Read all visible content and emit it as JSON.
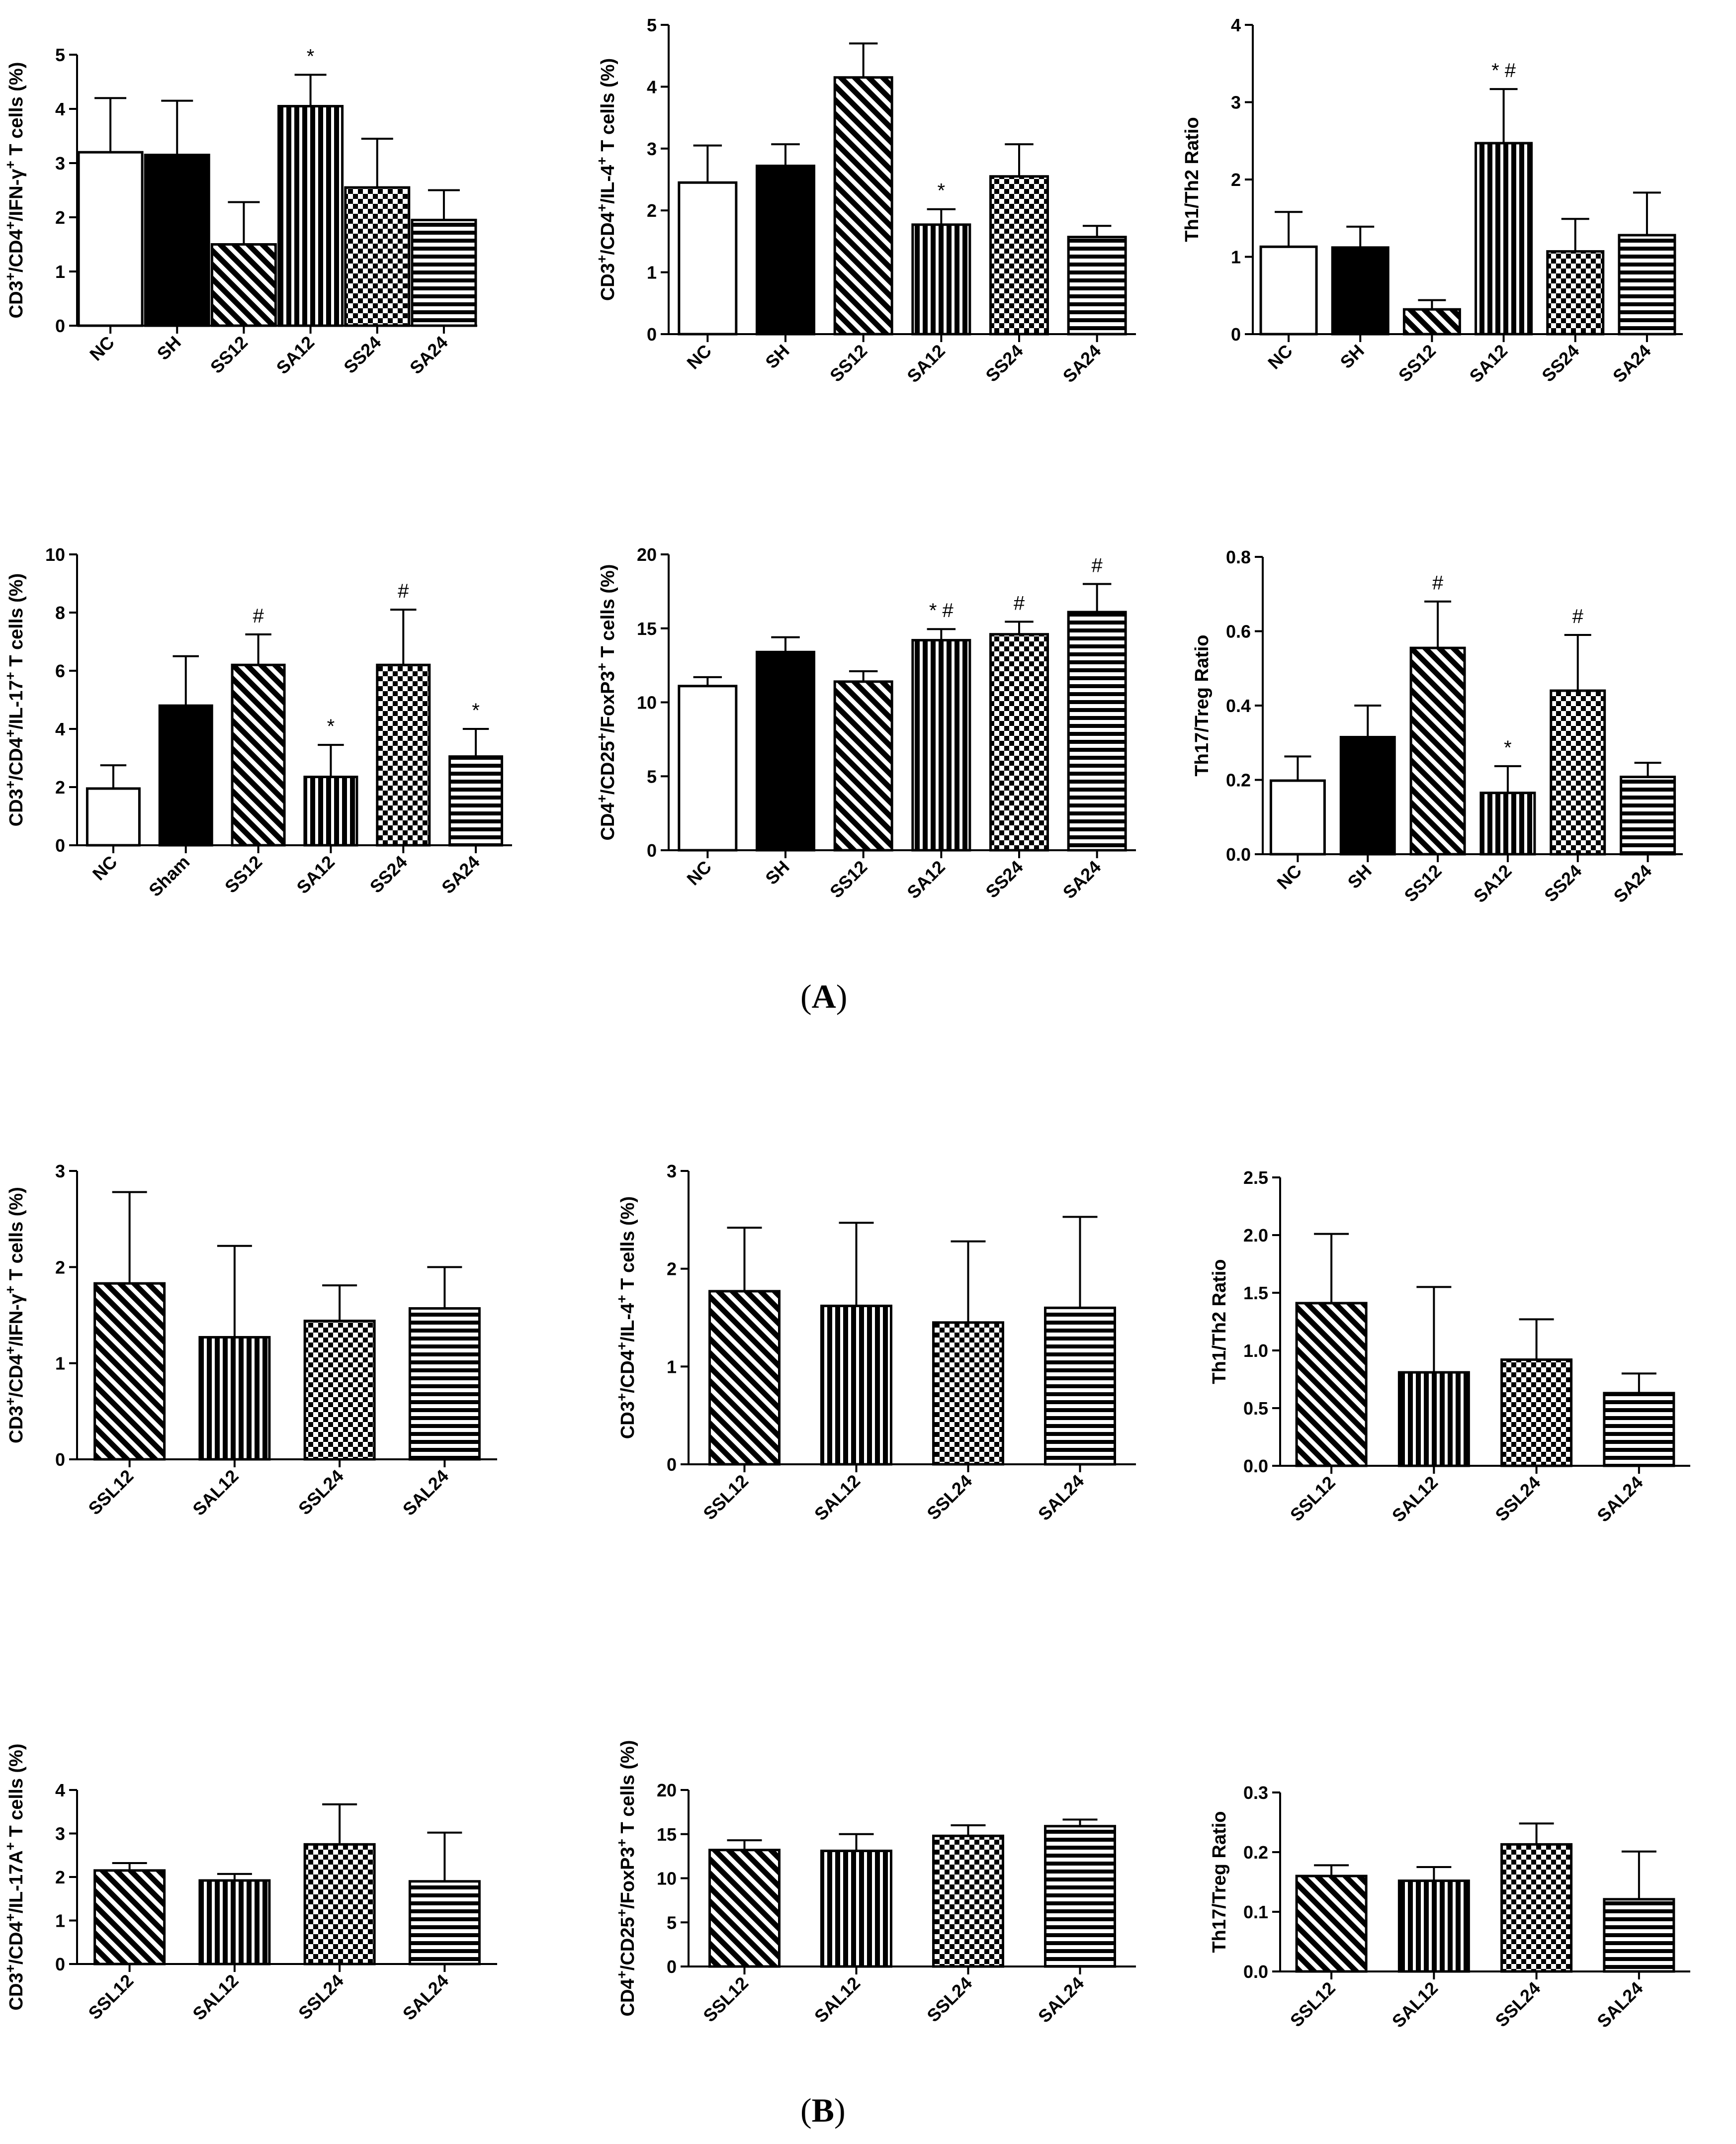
{
  "figure": {
    "panel_a_letter": "A",
    "panel_b_letter": "B"
  },
  "chart_data": [
    {
      "type": "bar",
      "panel": "A",
      "ylabel": "CD3⁺/CD4⁺/IFN-γ⁺ T cells (%)",
      "ylim": [
        0,
        5
      ],
      "yticks": [
        0,
        1,
        2,
        3,
        4,
        5
      ],
      "categories": [
        "NC",
        "SH",
        "SS12",
        "SA12",
        "SS24",
        "SA24"
      ],
      "patterns": [
        "white",
        "black",
        "diag",
        "vert",
        "check",
        "horiz"
      ],
      "values": [
        3.2,
        3.15,
        1.5,
        4.05,
        2.55,
        1.95
      ],
      "errors": [
        1.0,
        1.0,
        0.78,
        0.58,
        0.9,
        0.55
      ],
      "annotations": [
        "",
        "",
        "",
        "*",
        "",
        ""
      ]
    },
    {
      "type": "bar",
      "panel": "A",
      "ylabel": "CD3⁺/CD4⁺/IL-4⁺ T cells (%)",
      "ylim": [
        0,
        5
      ],
      "yticks": [
        0,
        1,
        2,
        3,
        4,
        5
      ],
      "categories": [
        "NC",
        "SH",
        "SS12",
        "SA12",
        "SS24",
        "SA24"
      ],
      "patterns": [
        "white",
        "black",
        "diag",
        "vert",
        "check",
        "horiz"
      ],
      "values": [
        2.45,
        2.72,
        4.15,
        1.77,
        2.55,
        1.57
      ],
      "errors": [
        0.6,
        0.35,
        0.55,
        0.25,
        0.52,
        0.18
      ],
      "annotations": [
        "",
        "",
        "",
        "*",
        "",
        ""
      ]
    },
    {
      "type": "bar",
      "panel": "A",
      "ylabel": "Th1/Th2 Ratio",
      "ylim": [
        0,
        4
      ],
      "yticks": [
        0,
        1,
        2,
        3,
        4
      ],
      "categories": [
        "NC",
        "SH",
        "SS12",
        "SA12",
        "SS24",
        "SA24"
      ],
      "patterns": [
        "white",
        "black",
        "diag",
        "vert",
        "check",
        "horiz"
      ],
      "values": [
        1.13,
        1.12,
        0.32,
        2.47,
        1.07,
        1.28
      ],
      "errors": [
        0.45,
        0.27,
        0.12,
        0.7,
        0.42,
        0.55
      ],
      "annotations": [
        "",
        "",
        "",
        "* #",
        "",
        ""
      ]
    },
    {
      "type": "bar",
      "panel": "A",
      "ylabel": "CD3⁺/CD4⁺/IL-17⁺ T cells (%)",
      "ylim": [
        0,
        10
      ],
      "yticks": [
        0,
        2,
        4,
        6,
        8,
        10
      ],
      "categories": [
        "NC",
        "Sham",
        "SS12",
        "SA12",
        "SS24",
        "SA24"
      ],
      "patterns": [
        "white",
        "black",
        "diag",
        "vert",
        "check",
        "horiz"
      ],
      "values": [
        1.95,
        4.8,
        6.2,
        2.35,
        6.2,
        3.05
      ],
      "errors": [
        0.8,
        1.7,
        1.05,
        1.1,
        1.9,
        0.95
      ],
      "annotations": [
        "",
        "",
        "#",
        "*",
        "#",
        "*"
      ]
    },
    {
      "type": "bar",
      "panel": "A",
      "ylabel": "CD4⁺/CD25⁺/FoxP3⁺ T cells (%)",
      "ylim": [
        0,
        20
      ],
      "yticks": [
        0,
        5,
        10,
        15,
        20
      ],
      "categories": [
        "NC",
        "SH",
        "SS12",
        "SA12",
        "SS24",
        "SA24"
      ],
      "patterns": [
        "white",
        "black",
        "diag",
        "vert",
        "check",
        "horiz"
      ],
      "values": [
        11.1,
        13.4,
        11.4,
        14.2,
        14.6,
        16.1
      ],
      "errors": [
        0.6,
        1.0,
        0.7,
        0.75,
        0.85,
        1.9
      ],
      "annotations": [
        "",
        "",
        "",
        "* #",
        "#",
        "#"
      ]
    },
    {
      "type": "bar",
      "panel": "A",
      "ylabel": "Th17/Treg Ratio",
      "ylim": [
        0,
        0.8
      ],
      "yticks": [
        "0.0",
        "0.2",
        "0.4",
        "0.6",
        "0.8"
      ],
      "categories": [
        "NC",
        "SH",
        "SS12",
        "SA12",
        "SS24",
        "SA24"
      ],
      "patterns": [
        "white",
        "black",
        "diag",
        "vert",
        "check",
        "horiz"
      ],
      "values": [
        0.198,
        0.315,
        0.555,
        0.165,
        0.44,
        0.208
      ],
      "errors": [
        0.065,
        0.085,
        0.125,
        0.072,
        0.15,
        0.038
      ],
      "annotations": [
        "",
        "",
        "#",
        "*",
        "#",
        ""
      ]
    },
    {
      "type": "bar",
      "panel": "B",
      "ylabel": "CD3⁺/CD4⁺/IFN-γ⁺ T cells (%)",
      "ylim": [
        0,
        3
      ],
      "yticks": [
        0,
        1,
        2,
        3
      ],
      "categories": [
        "SSL12",
        "SAL12",
        "SSL24",
        "SAL24"
      ],
      "patterns": [
        "diag",
        "vert",
        "check",
        "horiz"
      ],
      "values": [
        1.83,
        1.27,
        1.44,
        1.57
      ],
      "errors": [
        0.95,
        0.95,
        0.37,
        0.43
      ],
      "annotations": [
        "",
        "",
        "",
        ""
      ]
    },
    {
      "type": "bar",
      "panel": "B",
      "ylabel": "CD3⁺/CD4⁺/IL-4⁺ T cells (%)",
      "ylim": [
        0,
        3
      ],
      "yticks": [
        0,
        1,
        2,
        3
      ],
      "categories": [
        "SSL12",
        "SAL12",
        "SSL24",
        "SAL24"
      ],
      "patterns": [
        "diag",
        "vert",
        "check",
        "horiz"
      ],
      "values": [
        1.77,
        1.62,
        1.45,
        1.6
      ],
      "errors": [
        0.65,
        0.85,
        0.83,
        0.93
      ],
      "annotations": [
        "",
        "",
        "",
        ""
      ]
    },
    {
      "type": "bar",
      "panel": "B",
      "ylabel": "Th1/Th2 Ratio",
      "ylim": [
        0,
        2.5
      ],
      "yticks": [
        "0.0",
        "0.5",
        "1.0",
        "1.5",
        "2.0",
        "2.5"
      ],
      "categories": [
        "SSL12",
        "SAL12",
        "SSL24",
        "SAL24"
      ],
      "patterns": [
        "diag",
        "vert",
        "check",
        "horiz"
      ],
      "values": [
        1.41,
        0.81,
        0.92,
        0.63
      ],
      "errors": [
        0.6,
        0.74,
        0.35,
        0.17
      ],
      "annotations": [
        "",
        "",
        "",
        ""
      ]
    },
    {
      "type": "bar",
      "panel": "B",
      "ylabel": "CD3⁺/CD4⁺/IL-17A⁺ T cells (%)",
      "ylim": [
        0,
        4
      ],
      "yticks": [
        0,
        1,
        2,
        3,
        4
      ],
      "categories": [
        "SSL12",
        "SAL12",
        "SSL24",
        "SAL24"
      ],
      "patterns": [
        "diag",
        "vert",
        "check",
        "horiz"
      ],
      "values": [
        2.15,
        1.92,
        2.75,
        1.9
      ],
      "errors": [
        0.17,
        0.15,
        0.92,
        1.12
      ],
      "annotations": [
        "",
        "",
        "",
        ""
      ]
    },
    {
      "type": "bar",
      "panel": "B",
      "ylabel": "CD4⁺/CD25⁺/FoxP3⁺ T cells (%)",
      "ylim": [
        0,
        20
      ],
      "yticks": [
        0,
        5,
        10,
        15,
        20
      ],
      "categories": [
        "SSL12",
        "SAL12",
        "SSL24",
        "SAL24"
      ],
      "patterns": [
        "diag",
        "vert",
        "check",
        "horiz"
      ],
      "values": [
        13.2,
        13.1,
        14.8,
        15.9
      ],
      "errors": [
        1.1,
        1.9,
        1.2,
        0.75
      ],
      "annotations": [
        "",
        "",
        "",
        ""
      ]
    },
    {
      "type": "bar",
      "panel": "B",
      "ylabel": "Th17/Treg Ratio",
      "ylim": [
        0,
        0.3
      ],
      "yticks": [
        "0.0",
        "0.1",
        "0.2",
        "0.3"
      ],
      "categories": [
        "SSL12",
        "SAL12",
        "SSL24",
        "SAL24"
      ],
      "patterns": [
        "diag",
        "vert",
        "check",
        "horiz"
      ],
      "values": [
        0.16,
        0.152,
        0.213,
        0.121
      ],
      "errors": [
        0.018,
        0.023,
        0.035,
        0.08
      ],
      "annotations": [
        "",
        "",
        "",
        ""
      ]
    }
  ]
}
